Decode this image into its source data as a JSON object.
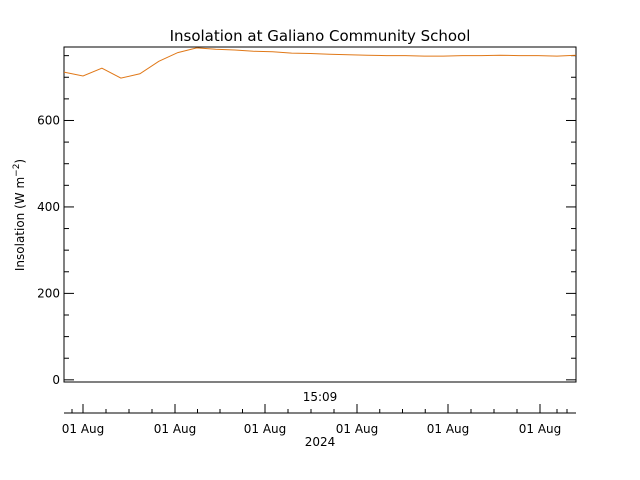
{
  "chart_data": {
    "type": "line",
    "title": "Insolation at Galiano Community School",
    "ylabel": "Insolation (W m",
    "ylabel_superscript": "−2",
    "ylabel_close": ")",
    "ylim": [
      -5,
      770
    ],
    "yticks_major": [
      0,
      200,
      400,
      600
    ],
    "yticks_minor_step": 50,
    "time_label": "15:09",
    "x_tick_labels": [
      "01 Aug",
      "01 Aug",
      "01 Aug",
      "01 Aug",
      "01 Aug",
      "01 Aug"
    ],
    "x_axis_year": "2024",
    "line_color": "#e07818",
    "x": [
      0,
      1,
      2,
      3,
      4,
      5,
      6,
      7,
      8,
      9,
      10,
      11,
      12,
      13,
      14,
      15,
      16,
      17,
      18,
      19,
      20,
      21,
      22,
      23,
      24,
      25,
      26,
      27
    ],
    "values": [
      712,
      703,
      721,
      698,
      708,
      737,
      757,
      768,
      765,
      763,
      760,
      759,
      756,
      755,
      753,
      752,
      751,
      750,
      750,
      749,
      749,
      750,
      750,
      751,
      750,
      750,
      749,
      751
    ]
  }
}
